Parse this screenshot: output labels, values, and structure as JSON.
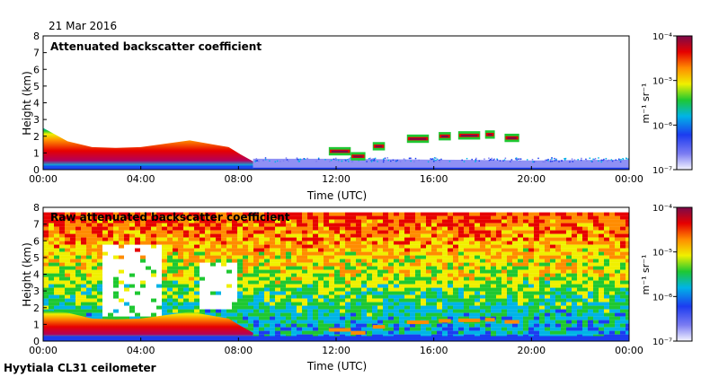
{
  "header": {
    "date": "21 Mar 2016"
  },
  "footer": {
    "instrument": "Hyytiala CL31 ceilometer"
  },
  "chart_data": [
    {
      "type": "heatmap",
      "title": "Attenuated backscatter coefficient",
      "xlabel": "Time (UTC)",
      "ylabel": "Height (km)",
      "x_ticks": [
        "00:00",
        "04:00",
        "08:00",
        "12:00",
        "16:00",
        "20:00",
        "00:00"
      ],
      "y_ticks": [
        "0",
        "1",
        "2",
        "3",
        "4",
        "5",
        "6",
        "7",
        "8"
      ],
      "xlim_hours": [
        0,
        24
      ],
      "ylim_km": [
        0,
        8
      ],
      "colorbar": {
        "scale": "log",
        "unit": "m⁻¹ sr⁻¹",
        "ticks": [
          "10⁻⁴",
          "10⁻⁵",
          "10⁻⁶",
          "10⁻⁷"
        ],
        "range": [
          1e-07,
          0.0001
        ]
      },
      "features": {
        "boundary_layer_top_km": [
          [
            0,
            2.5
          ],
          [
            1,
            1.7
          ],
          [
            2,
            1.35
          ],
          [
            3,
            1.3
          ],
          [
            4,
            1.35
          ],
          [
            5,
            1.55
          ],
          [
            6,
            1.75
          ],
          [
            7,
            1.5
          ],
          [
            7.6,
            1.35
          ],
          [
            8.1,
            0.9
          ],
          [
            8.6,
            0.5
          ]
        ],
        "low_aerosol_layer_km": [
          [
            8.6,
            0.65
          ],
          [
            12,
            0.65
          ],
          [
            16,
            0.6
          ],
          [
            20,
            0.55
          ],
          [
            24,
            0.6
          ]
        ],
        "cloud_segments": [
          {
            "x0": 11.7,
            "x1": 12.6,
            "y_km": 1.1
          },
          {
            "x0": 12.6,
            "x1": 13.2,
            "y_km": 0.8
          },
          {
            "x0": 13.5,
            "x1": 14.0,
            "y_km": 1.4
          },
          {
            "x0": 14.9,
            "x1": 15.8,
            "y_km": 1.85
          },
          {
            "x0": 16.2,
            "x1": 16.7,
            "y_km": 2.0
          },
          {
            "x0": 17.0,
            "x1": 17.9,
            "y_km": 2.05
          },
          {
            "x0": 18.1,
            "x1": 18.5,
            "y_km": 2.1
          },
          {
            "x0": 18.9,
            "x1": 19.5,
            "y_km": 1.9
          }
        ]
      }
    },
    {
      "type": "heatmap",
      "title": "Raw attenuated backscatter coefficient",
      "xlabel": "Time (UTC)",
      "ylabel": "Height (km)",
      "x_ticks": [
        "00:00",
        "04:00",
        "08:00",
        "12:00",
        "16:00",
        "20:00",
        "00:00"
      ],
      "y_ticks": [
        "0",
        "1",
        "2",
        "3",
        "4",
        "5",
        "6",
        "7",
        "8"
      ],
      "xlim_hours": [
        0,
        24
      ],
      "ylim_km": [
        0,
        8
      ],
      "colorbar": {
        "scale": "log",
        "unit": "m⁻¹ sr⁻¹",
        "ticks": [
          "10⁻⁴",
          "10⁻⁵",
          "10⁻⁶",
          "10⁻⁷"
        ],
        "range": [
          1e-07,
          0.0001
        ]
      },
      "features": {
        "data_top_km": 7.7,
        "missing_data_regions": [
          {
            "x0": 2.3,
            "x1": 4.7,
            "y0_km": 1.5,
            "y1_km": 5.8
          },
          {
            "x0": 6.3,
            "x1": 7.8,
            "y0_km": 2.0,
            "y1_km": 4.8
          }
        ]
      }
    }
  ]
}
